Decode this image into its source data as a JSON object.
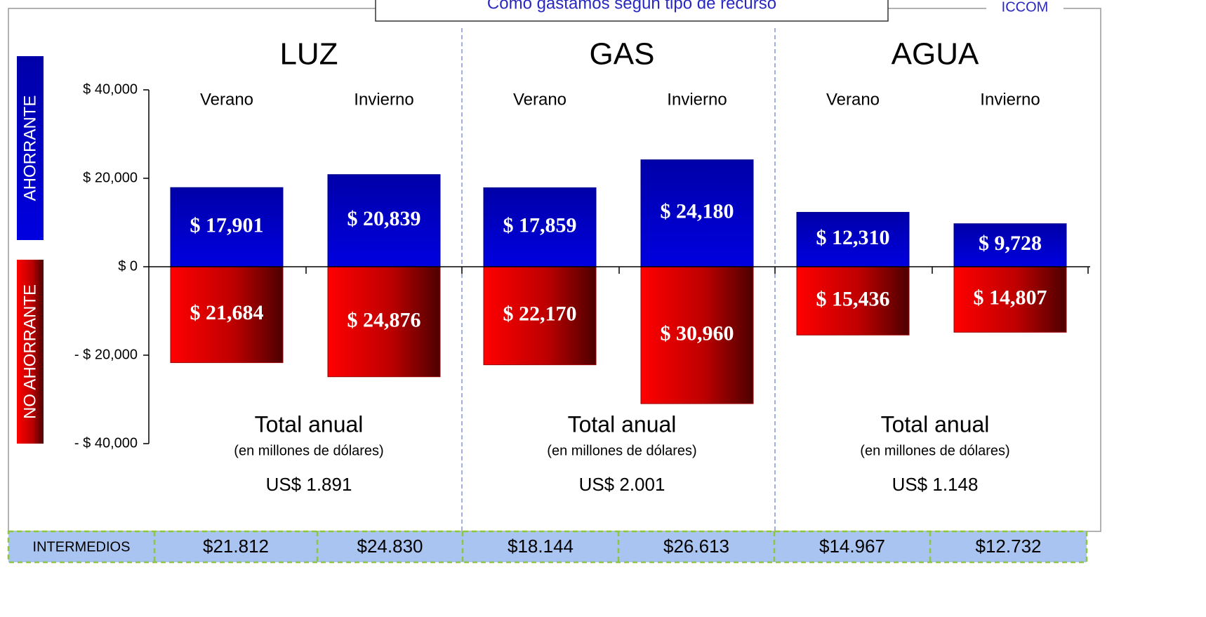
{
  "chart_data": {
    "type": "bar",
    "title": "Como gastamos según tipo de recurso",
    "source": "ICCOM",
    "groups": [
      {
        "name": "LUZ",
        "total_title": "Total anual",
        "total_note": "(en millones de dólares)",
        "total": "US$ 1.891"
      },
      {
        "name": "GAS",
        "total_title": "Total anual",
        "total_note": "(en millones de dólares)",
        "total": "US$ 2.001"
      },
      {
        "name": "AGUA",
        "total_title": "Total anual",
        "total_note": "(en millones de dólares)",
        "total": "US$ 1.148"
      }
    ],
    "categories": [
      "Verano",
      "Invierno",
      "Verano",
      "Invierno",
      "Verano",
      "Invierno"
    ],
    "series": [
      {
        "name": "AHORRANTE",
        "color": "#0000e0",
        "values": [
          17901,
          20839,
          17859,
          24180,
          12310,
          9728
        ],
        "value_labels": [
          "$ 17,901",
          "$ 20,839",
          "$ 17,859",
          "$ 24,180",
          "$ 12,310",
          "$ 9,728"
        ]
      },
      {
        "name": "NO AHORRANTE",
        "color": "#ff0000",
        "values": [
          -21684,
          -24876,
          -22170,
          -30960,
          -15436,
          -14807
        ],
        "value_labels": [
          "$ 21,684",
          "$ 24,876",
          "$ 22,170",
          "$ 30,960",
          "$ 15,436",
          "$ 14,807"
        ]
      }
    ],
    "ylim": [
      -40000,
      40000
    ],
    "yticks": [
      {
        "value": 40000,
        "label": "$ 40,000"
      },
      {
        "value": 20000,
        "label": "$ 20,000"
      },
      {
        "value": 0,
        "label": "$ 0"
      },
      {
        "value": -20000,
        "label": "- $ 20,000"
      },
      {
        "value": -40000,
        "label": "- $ 40,000"
      }
    ],
    "intermediate": {
      "label": "INTERMEDIOS",
      "values": [
        "$21.812",
        "$24.830",
        "$18.144",
        "$26.613",
        "$14.967",
        "$12.732"
      ]
    }
  }
}
